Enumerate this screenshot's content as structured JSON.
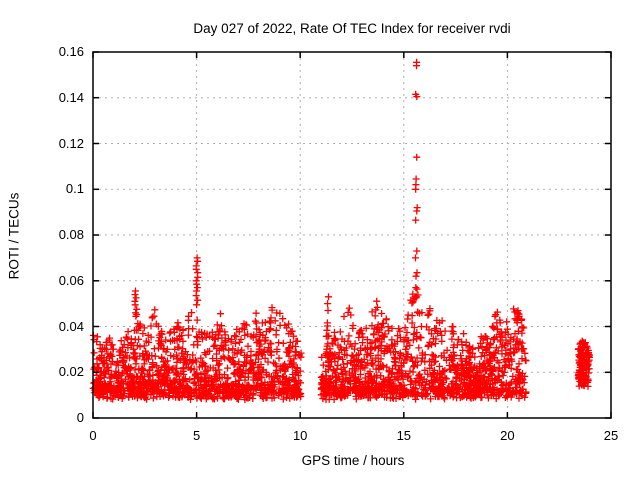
{
  "page": {
    "background": "#ffffff",
    "frame_color": "#000000",
    "grid_color": "#b0b0b0",
    "text_color": "#000000"
  },
  "chart_data": {
    "type": "scatter",
    "title": "Day 027 of 2022, Rate Of TEC Index for receiver rvdi",
    "xlabel": "GPS time / hours",
    "ylabel": "ROTI / TECUs",
    "series_name": "ROTI",
    "xlim": [
      0,
      25
    ],
    "ylim": [
      0,
      0.16
    ],
    "xticks": [
      0,
      5,
      10,
      15,
      20,
      25
    ],
    "xtick_labels": [
      "0",
      "5",
      "10",
      "15",
      "20",
      "25"
    ],
    "yticks": [
      0,
      0.02,
      0.04,
      0.06,
      0.08,
      0.1,
      0.12,
      0.14,
      0.16
    ],
    "ytick_labels": [
      "0",
      "0.02",
      "0.04",
      "0.06",
      "0.08",
      "0.1",
      "0.12",
      "0.14",
      "0.16"
    ],
    "grid": true,
    "grid_style": "dashed",
    "legend": "none",
    "marker": {
      "shape": "plus",
      "color": "#ff0000",
      "size": 7
    },
    "scatter_spec": {
      "comment": "Dense ROTI band ~0.008-0.045 TECU over 0-10h and 11-20.9h, isolated cluster 23.4-24h, gaps 10.05-11.0h and 20.9-23.4h; large spike to 0.155 at ~15.6h",
      "seed": 1327,
      "baseline": {
        "ymin": 0.008,
        "ymin_jitter": 0.005,
        "power": 2.2
      },
      "segments": [
        {
          "x0": 0.0,
          "x1": 10.05,
          "n": 1300
        },
        {
          "x0": 11.0,
          "x1": 20.9,
          "n": 1300
        },
        {
          "x0": 23.42,
          "x1": 23.98,
          "n": 120,
          "ymin": 0.012,
          "power": 1.1
        }
      ],
      "envelope": [
        [
          0.0,
          0.042
        ],
        [
          0.2,
          0.037
        ],
        [
          0.5,
          0.032
        ],
        [
          0.8,
          0.035
        ],
        [
          1.1,
          0.03
        ],
        [
          1.4,
          0.035
        ],
        [
          1.7,
          0.041
        ],
        [
          1.9,
          0.035
        ],
        [
          2.05,
          0.048
        ],
        [
          2.3,
          0.044
        ],
        [
          2.6,
          0.037
        ],
        [
          2.8,
          0.043
        ],
        [
          3.0,
          0.048
        ],
        [
          3.2,
          0.04
        ],
        [
          3.5,
          0.035
        ],
        [
          3.8,
          0.039
        ],
        [
          4.1,
          0.044
        ],
        [
          4.4,
          0.038
        ],
        [
          4.7,
          0.049
        ],
        [
          4.9,
          0.043
        ],
        [
          5.05,
          0.047
        ],
        [
          5.3,
          0.04
        ],
        [
          5.6,
          0.043
        ],
        [
          5.9,
          0.037
        ],
        [
          6.1,
          0.048
        ],
        [
          6.4,
          0.042
        ],
        [
          6.7,
          0.035
        ],
        [
          7.0,
          0.041
        ],
        [
          7.3,
          0.049
        ],
        [
          7.6,
          0.043
        ],
        [
          7.9,
          0.049
        ],
        [
          8.2,
          0.041
        ],
        [
          8.5,
          0.045
        ],
        [
          8.8,
          0.053
        ],
        [
          9.0,
          0.048
        ],
        [
          9.3,
          0.043
        ],
        [
          9.6,
          0.039
        ],
        [
          9.9,
          0.035
        ],
        [
          10.05,
          0.031
        ],
        [
          11.0,
          0.036
        ],
        [
          11.35,
          0.049
        ],
        [
          11.6,
          0.039
        ],
        [
          11.9,
          0.037
        ],
        [
          12.1,
          0.046
        ],
        [
          12.3,
          0.051
        ],
        [
          12.6,
          0.043
        ],
        [
          12.9,
          0.039
        ],
        [
          13.2,
          0.042
        ],
        [
          13.5,
          0.047
        ],
        [
          13.75,
          0.054
        ],
        [
          14.0,
          0.046
        ],
        [
          14.3,
          0.042
        ],
        [
          14.6,
          0.037
        ],
        [
          14.9,
          0.042
        ],
        [
          15.2,
          0.049
        ],
        [
          15.5,
          0.058
        ],
        [
          15.7,
          0.059
        ],
        [
          15.9,
          0.054
        ],
        [
          16.1,
          0.047
        ],
        [
          16.4,
          0.049
        ],
        [
          16.7,
          0.042
        ],
        [
          17.0,
          0.045
        ],
        [
          17.3,
          0.041
        ],
        [
          17.6,
          0.037
        ],
        [
          17.9,
          0.039
        ],
        [
          18.2,
          0.034
        ],
        [
          18.5,
          0.032
        ],
        [
          18.8,
          0.037
        ],
        [
          19.1,
          0.039
        ],
        [
          19.4,
          0.045
        ],
        [
          19.6,
          0.054
        ],
        [
          19.8,
          0.045
        ],
        [
          20.05,
          0.041
        ],
        [
          20.3,
          0.055
        ],
        [
          20.5,
          0.051
        ],
        [
          20.7,
          0.043
        ],
        [
          20.9,
          0.035
        ],
        [
          23.42,
          0.032
        ],
        [
          23.6,
          0.035
        ],
        [
          23.8,
          0.033
        ],
        [
          23.98,
          0.028
        ]
      ],
      "spikes": [
        {
          "x": 15.62,
          "spread": 0.12,
          "ys": [
            0.1555,
            0.154,
            0.1415,
            0.1405,
            0.114,
            0.1045,
            0.102,
            0.1,
            0.092,
            0.0905,
            0.0865,
            0.073,
            0.07,
            0.0635,
            0.062,
            0.057,
            0.0525
          ]
        },
        {
          "x": 5.03,
          "spread": 0.1,
          "ys": [
            0.07,
            0.0685,
            0.0665,
            0.065,
            0.0635,
            0.0615,
            0.06,
            0.0585,
            0.057,
            0.0555,
            0.0535,
            0.0515,
            0.0495
          ]
        },
        {
          "x": 2.06,
          "spread": 0.12,
          "ys": [
            0.0555,
            0.054,
            0.0525,
            0.051,
            0.0495,
            0.0475,
            0.046
          ]
        },
        {
          "x": 11.35,
          "spread": 0.08,
          "ys": [
            0.053,
            0.05,
            0.047
          ]
        }
      ]
    }
  }
}
